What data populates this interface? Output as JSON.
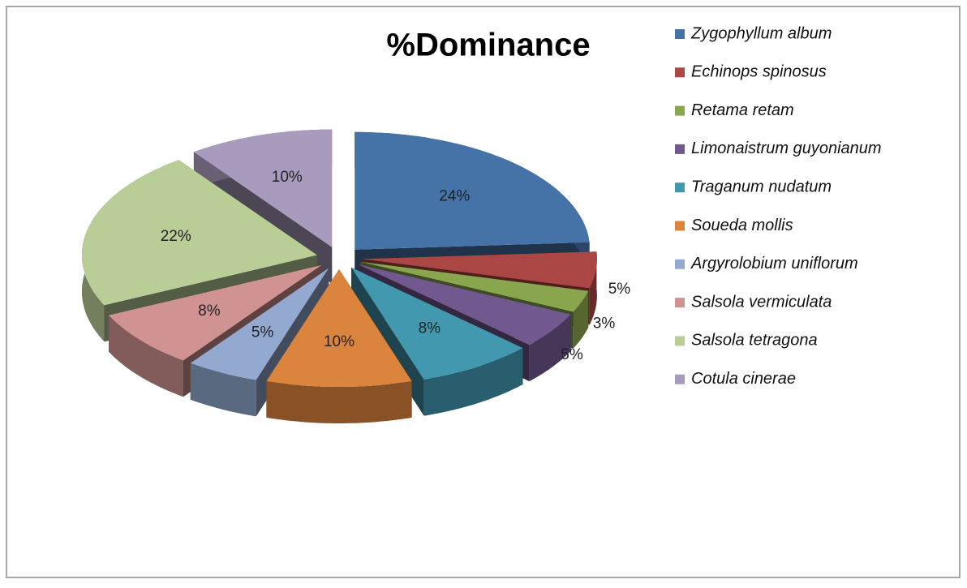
{
  "chart_data": {
    "type": "pie",
    "title": "%Dominance",
    "categories": [
      "Zygophyllum album",
      "Echinops spinosus",
      "Retama retam",
      "Limonaistrum guyonianum",
      "Traganum nudatum",
      "Soueda mollis",
      "Argyrolobium uniflorum",
      "Salsola vermiculata",
      "Salsola tetragona",
      "Cotula cinerae"
    ],
    "values": [
      24,
      5,
      3,
      5,
      8,
      10,
      5,
      8,
      22,
      10
    ],
    "value_labels": [
      "24%",
      "5%",
      "3%",
      "5%",
      "8%",
      "10%",
      "5%",
      "8%",
      "22%",
      "10%"
    ],
    "colors": [
      "#4572a7",
      "#aa4643",
      "#89a54e",
      "#71588f",
      "#4198af",
      "#db843d",
      "#93a9cf",
      "#d19392",
      "#b9cd96",
      "#a99bbd"
    ],
    "legend": "right"
  }
}
